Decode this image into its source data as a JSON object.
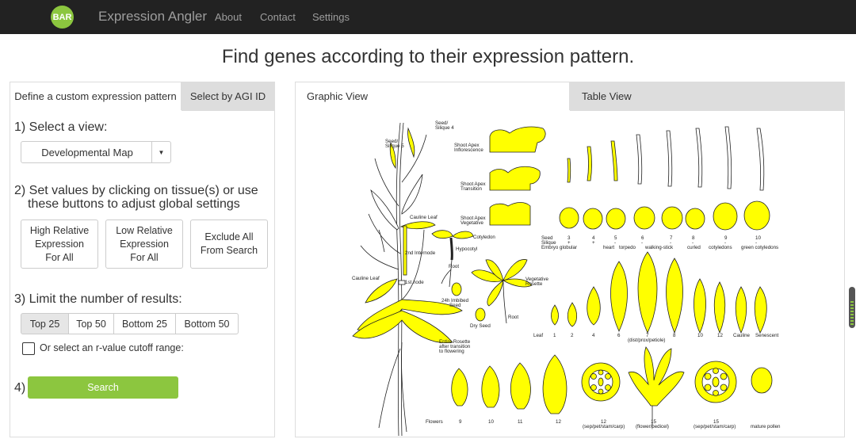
{
  "nav": {
    "logo": "BAR",
    "brand": "Expression Angler",
    "links": [
      "About",
      "Contact",
      "Settings"
    ]
  },
  "headline": "Find genes according to their expression pattern.",
  "left_tabs": [
    "Define a custom expression pattern",
    "Select by AGI ID"
  ],
  "steps": {
    "s1": "1) Select a view:",
    "s2a": "2) Set values by clicking on tissue(s) or use",
    "s2b": "these buttons to adjust global settings",
    "s3": "3) Limit the number of results:",
    "s4": "4)"
  },
  "view_select": {
    "selected": "Developmental Map"
  },
  "global_buttons": [
    [
      "High Relative",
      "Expression",
      "For All"
    ],
    [
      "Low Relative",
      "Expression",
      "For All"
    ],
    [
      "Exclude All",
      "From Search"
    ]
  ],
  "limit_buttons": [
    "Top 25",
    "Top 50",
    "Bottom 25",
    "Bottom 50"
  ],
  "limit_selected": "Top 25",
  "cutoff_label": "Or select an r-value cutoff range:",
  "search_label": "Search",
  "right_tabs": [
    "Graphic View",
    "Table View"
  ],
  "colors": {
    "accent": "#8cc63f",
    "navbar": "#222222",
    "tissue": "#ffff00"
  },
  "map": {
    "seed_silique_4": [
      "Seed/",
      "Silique 4"
    ],
    "seed_silique_5": [
      "Seed/",
      "Silique 5"
    ],
    "shoot_apex_inflorescence": [
      "Shoot Apex",
      "Inflorescence"
    ],
    "shoot_apex_transition": [
      "Shoot Apex",
      "Transition"
    ],
    "shoot_apex_vegetative": [
      "Shoot Apex",
      "Vegetative"
    ],
    "cauline_leaf": "Cauline Leaf",
    "cotyledon": "Cotyledon",
    "hypocotyl": "Hypocotyl",
    "internode_2": "2nd Internode",
    "node_1": "1st node",
    "root": "Root",
    "imbibed_seed": [
      "24h Imbibed",
      "Seed"
    ],
    "dry_seed": "Dry Seed",
    "vegetative_rosette": [
      "Vegetative",
      "Rosette"
    ],
    "entire_rosette": [
      "Entire Rosette",
      "after transition",
      "to flowering"
    ],
    "seed_row_header": [
      "Seed",
      "Silique",
      "Embryo"
    ],
    "seed_stages": [
      {
        "num": "3",
        "sign": "+",
        "stage": "globular"
      },
      {
        "num": "4",
        "sign": "+",
        "stage": ""
      },
      {
        "num": "5",
        "sign": "-",
        "stage": "heart"
      },
      {
        "num": "6",
        "sign": "-",
        "stage": "torpedo"
      },
      {
        "num": "7",
        "sign": "-",
        "stage": "walking-stick"
      },
      {
        "num": "8",
        "sign": "-",
        "stage": "curled"
      },
      {
        "num": "9",
        "sign": "-",
        "stage": "cotyledons"
      },
      {
        "num": "10",
        "sign": "-",
        "stage": "green cotyledons"
      }
    ],
    "leaf_header": "Leaf",
    "leaf_labels": [
      "1",
      "2",
      "4",
      "6",
      "7",
      "8",
      "10",
      "12",
      "Cauline",
      "Senescent"
    ],
    "leaf7_note": "(dist/prox/petiole)",
    "flowers_header": "Flowers",
    "flower_labels": [
      "9",
      "10",
      "11",
      "12"
    ],
    "flower12_parts": [
      "12",
      "(sep/pet/stam/carp)"
    ],
    "flower15_pedicel": [
      "15",
      "(flower/pedicel)"
    ],
    "flower15_parts": [
      "15",
      "(sep/pet/stam/carp)"
    ],
    "pollen": "mature pollen"
  }
}
